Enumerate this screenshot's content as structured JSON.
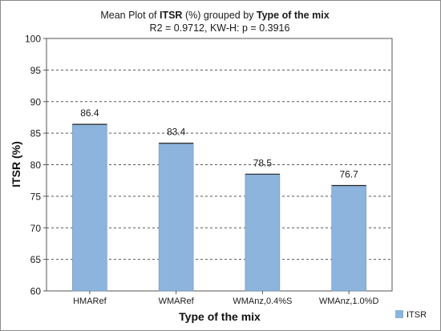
{
  "chart_data": {
    "type": "bar",
    "title_parts": [
      {
        "text": "Mean Plot of ",
        "bold": false
      },
      {
        "text": "ITSR",
        "bold": true
      },
      {
        "text": " (%) grouped by ",
        "bold": false
      },
      {
        "text": "Type of the mix",
        "bold": true
      }
    ],
    "subtitle": "R2 = 0.9712, KW-H: p = 0.3916",
    "xlabel": "Type of the mix",
    "ylabel": "ITSR (%)",
    "categories": [
      "HMARef",
      "WMARef",
      "WMAnz,0.4%S",
      "WMAnz,1.0%D"
    ],
    "series": [
      {
        "name": "ITSR",
        "values": [
          86.4,
          83.4,
          78.5,
          76.7
        ],
        "color": "#8cb4dc"
      }
    ],
    "data_labels": [
      "86.4",
      "83.4",
      "78.5",
      "76.7"
    ],
    "ylim": [
      60,
      100
    ],
    "yticks": [
      60,
      65,
      70,
      75,
      80,
      85,
      90,
      95,
      100
    ],
    "grid": "horizontal dashed",
    "legend_position": "bottom-right"
  }
}
